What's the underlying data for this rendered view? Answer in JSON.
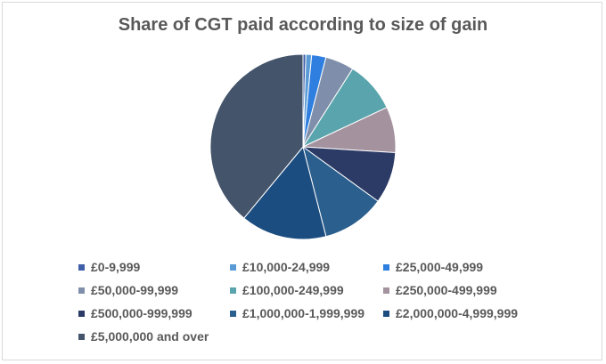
{
  "chart_data": {
    "type": "pie",
    "title": "Share of CGT paid according to size of gain",
    "legend_position": "bottom",
    "categories": [
      "£0-9,999",
      "£10,000-24,999",
      "£25,000-49,999",
      "£50,000-99,999",
      "£100,000-249,999",
      "£250,000-499,999",
      "£500,000-999,999",
      "£1,000,000-1,999,999",
      "£2,000,000-4,999,999",
      "£5,000,000 and over"
    ],
    "values": [
      0.5,
      1,
      2.5,
      5,
      9,
      8,
      9,
      11,
      15,
      39
    ],
    "colors": [
      "#3f5fa8",
      "#5b9bd5",
      "#2e7fe0",
      "#7f8fab",
      "#5aa5ad",
      "#a4929f",
      "#2c3a66",
      "#2b5f8e",
      "#1c4d80",
      "#44546a"
    ]
  }
}
